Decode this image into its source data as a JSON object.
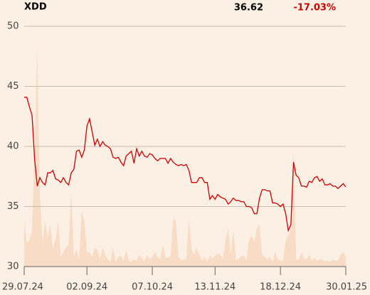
{
  "chart_data": {
    "type": "line",
    "title": "XDD",
    "price": 36.62,
    "change": "-17.03%",
    "change_color": "#cc0000",
    "xlim": [
      0,
      123
    ],
    "xticks": [
      {
        "value": 0,
        "label": "29.07.24"
      },
      {
        "value": 24,
        "label": "02.09.24"
      },
      {
        "value": 49,
        "label": "07.10.24"
      },
      {
        "value": 73,
        "label": "13.11.24"
      },
      {
        "value": 98,
        "label": "18.12.24"
      },
      {
        "value": 123,
        "label": "30.01.25"
      }
    ],
    "ylim": [
      30,
      50
    ],
    "yticks": [
      30,
      35,
      40,
      45,
      50
    ],
    "grid": true,
    "series": [
      {
        "color": "#cc0000",
        "values": [
          44.1,
          44.1,
          43.3,
          42.6,
          38.9,
          36.7,
          37.4,
          37.0,
          36.8,
          37.8,
          37.8,
          38.0,
          37.3,
          37.2,
          37.0,
          37.4,
          37.0,
          36.8,
          37.8,
          38.1,
          39.6,
          39.7,
          39.1,
          39.7,
          41.7,
          42.3,
          41.2,
          40.1,
          40.6,
          40.0,
          40.4,
          40.1,
          40.0,
          39.8,
          39.1,
          39.0,
          39.1,
          38.7,
          38.4,
          39.2,
          39.4,
          39.6,
          38.6,
          39.8,
          39.2,
          39.6,
          39.2,
          39.1,
          39.4,
          39.3,
          39.0,
          38.8,
          39.0,
          39.0,
          39.0,
          38.6,
          39.0,
          38.7,
          38.5,
          38.4,
          38.5,
          38.4,
          38.5,
          38.0,
          37.0,
          37.0,
          37.0,
          37.4,
          37.4,
          37.0,
          37.0,
          35.6,
          35.9,
          35.6,
          36.0,
          35.8,
          35.7,
          35.6,
          35.2,
          35.4,
          35.7,
          35.5,
          35.5,
          35.4,
          35.4,
          35.0,
          35.0,
          34.9,
          34.4,
          34.4,
          35.7,
          36.4,
          36.4,
          36.3,
          36.3,
          35.3,
          35.3,
          35.2,
          35.0,
          35.2,
          34.4,
          33.0,
          33.5,
          38.7,
          37.6,
          37.4,
          36.7,
          36.7,
          36.6,
          37.1,
          37.0,
          37.4,
          37.5,
          37.1,
          37.3,
          36.8,
          36.8,
          36.9,
          36.7,
          36.7,
          36.5,
          36.7,
          36.9,
          36.62
        ]
      },
      {
        "type": "area",
        "color": "#f9dcc6",
        "values": [
          33.8,
          32.0,
          32.2,
          33.0,
          40,
          48.2,
          36,
          32,
          33.8,
          32.5,
          33.5,
          31.5,
          32.2,
          33.8,
          30.8,
          31.2,
          31.6,
          31.8,
          36.2,
          30.8,
          31.4,
          30.6,
          34.6,
          33.8,
          31.2,
          31.2,
          30.8,
          31.6,
          31.4,
          30.6,
          31.6,
          31.0,
          30.6,
          30.4,
          31.6,
          30.4,
          30.8,
          30.9,
          30.5,
          31.4,
          30.5,
          30.4,
          30.6,
          30.5,
          31.0,
          30.7,
          30.4,
          31.0,
          30.6,
          30.8,
          31.2,
          30.8,
          30.6,
          31.8,
          30.8,
          30.7,
          30.9,
          34.0,
          33.8,
          30.8,
          30.5,
          30.6,
          30.6,
          34.0,
          31.4,
          31.0,
          31.6,
          31.0,
          30.5,
          30.8,
          30.4,
          30.9,
          30.7,
          30.9,
          31.1,
          31.0,
          30.6,
          32.2,
          33.2,
          31.0,
          33.0,
          30.6,
          30.6,
          30.9,
          30.9,
          30.6,
          32.2,
          32.6,
          32.0,
          33.2,
          33.5,
          31.0,
          30.8,
          30.6,
          30.8,
          30.4,
          31.2,
          30.6,
          30.5,
          30.5,
          32.2,
          32.6,
          33.0,
          39.8,
          30.5,
          30.6,
          31.2,
          30.7,
          30.6,
          31.0,
          30.5,
          30.7,
          30.5,
          30.6,
          30.6,
          30.4,
          30.5,
          30.4,
          30.6,
          30.5,
          30.5,
          31.0,
          31.2,
          30.8
        ]
      }
    ]
  }
}
